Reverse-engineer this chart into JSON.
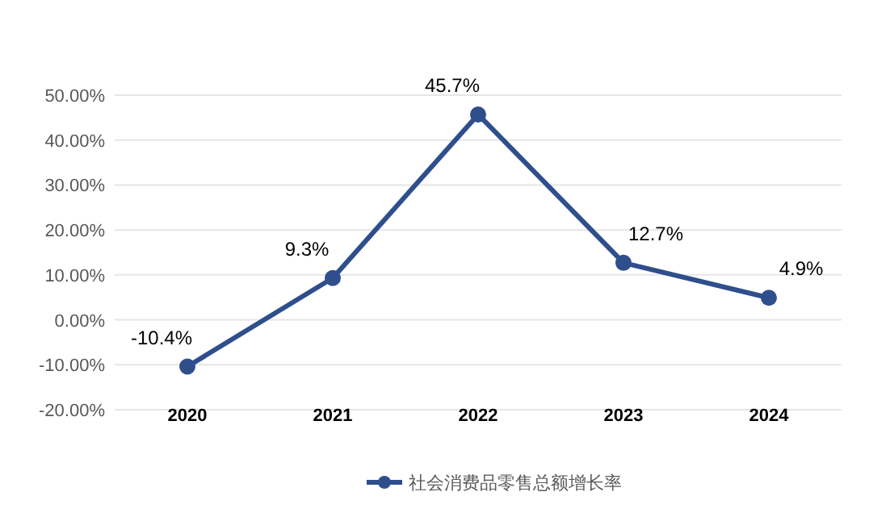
{
  "chart_data": {
    "type": "line",
    "categories": [
      "2020",
      "2021",
      "2022",
      "2023",
      "2024"
    ],
    "series": [
      {
        "name": "社会消费品零售总额增长率",
        "color": "#2f4f8c",
        "values": [
          -10.4,
          9.3,
          45.7,
          12.7,
          4.9
        ],
        "value_labels": [
          "-10.4%",
          "9.3%",
          "45.7%",
          "12.7%",
          "4.9%"
        ]
      }
    ],
    "ylim": [
      -20,
      50
    ],
    "yticks": [
      {
        "value": -20,
        "label": "-20.00%"
      },
      {
        "value": -10,
        "label": "-10.00%"
      },
      {
        "value": 0,
        "label": "0.00%"
      },
      {
        "value": 10,
        "label": "10.00%"
      },
      {
        "value": 20,
        "label": "20.00%"
      },
      {
        "value": 30,
        "label": "30.00%"
      },
      {
        "value": 40,
        "label": "40.00%"
      },
      {
        "value": 50,
        "label": "50.00%"
      }
    ],
    "grid": "y",
    "legend": "bottom",
    "marker": "circle",
    "line_style": "solid"
  }
}
